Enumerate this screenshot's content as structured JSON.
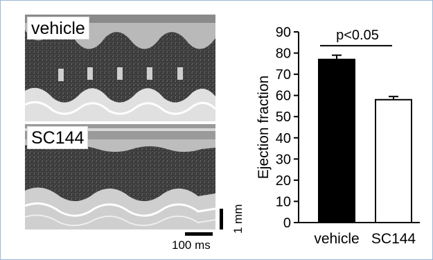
{
  "panels": {
    "top_label": "vehicle",
    "bottom_label": "SC144"
  },
  "scale": {
    "vertical_label": "1 mm",
    "horizontal_label": "100 ms"
  },
  "chart_data": {
    "type": "bar",
    "categories": [
      "vehicle",
      "SC144"
    ],
    "values": [
      77,
      58
    ],
    "errors": [
      2,
      1.5
    ],
    "fills": [
      "#000000",
      "#ffffff"
    ],
    "ylabel": "Ejection fraction",
    "ylim": [
      0,
      90
    ],
    "yticks": [
      0,
      10,
      20,
      30,
      40,
      50,
      60,
      70,
      80,
      90
    ],
    "annotation": "p<0.05"
  }
}
